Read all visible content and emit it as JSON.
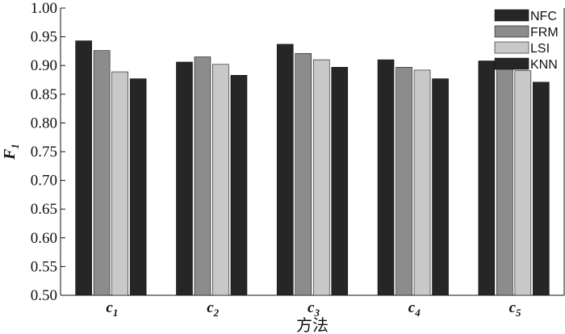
{
  "chart_data": {
    "type": "bar",
    "xlabel": "方法",
    "ylabel": "F",
    "ylabel_sub": "1",
    "ylim": [
      0.5,
      1.0
    ],
    "yticks": [
      "0.50",
      "0.55",
      "0.60",
      "0.65",
      "0.70",
      "0.75",
      "0.80",
      "0.85",
      "0.90",
      "0.95",
      "1.00"
    ],
    "categories": [
      {
        "base": "c",
        "sub": "1"
      },
      {
        "base": "c",
        "sub": "2"
      },
      {
        "base": "c",
        "sub": "3"
      },
      {
        "base": "c",
        "sub": "4"
      },
      {
        "base": "c",
        "sub": "5"
      }
    ],
    "legend_position": "top-right",
    "series": [
      {
        "name": "NFC",
        "color": "#262626",
        "values": [
          0.943,
          0.906,
          0.937,
          0.91,
          0.908
        ]
      },
      {
        "name": "FRM",
        "color": "#8c8c8c",
        "values": [
          0.926,
          0.915,
          0.921,
          0.897,
          0.898
        ]
      },
      {
        "name": "LSI",
        "color": "#c8c8c8",
        "values": [
          0.889,
          0.902,
          0.91,
          0.892,
          0.891
        ]
      },
      {
        "name": "KNN",
        "color": "#262626",
        "values": [
          0.877,
          0.883,
          0.897,
          0.877,
          0.871
        ]
      }
    ]
  }
}
